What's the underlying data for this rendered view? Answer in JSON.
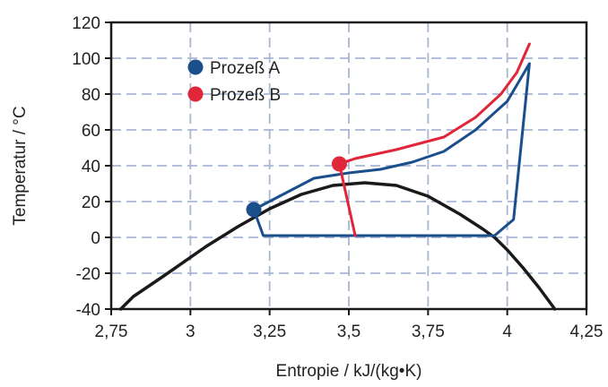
{
  "chart_data": {
    "type": "line",
    "xlabel": "Entropie / kJ/(kg•K)",
    "ylabel": "Temperatur / °C",
    "xlim": [
      2.75,
      4.25
    ],
    "ylim": [
      -40,
      120
    ],
    "x_ticks": [
      2.75,
      3.0,
      3.25,
      3.5,
      3.75,
      4.0,
      4.25
    ],
    "x_tick_labels": [
      "2,75",
      "3",
      "3,25",
      "3,5",
      "3,75",
      "4",
      "4,25"
    ],
    "y_ticks": [
      -40,
      -20,
      0,
      20,
      40,
      60,
      80,
      100,
      120
    ],
    "y_tick_labels": [
      "-40",
      "-20",
      "0",
      "20",
      "40",
      "60",
      "80",
      "100",
      "120"
    ],
    "grid": true,
    "legend_position": "top-left",
    "saturation_curve": {
      "color": "#1a1a1a",
      "x": [
        2.78,
        2.82,
        2.92,
        3.05,
        3.15,
        3.25,
        3.35,
        3.45,
        3.55,
        3.65,
        3.75,
        3.85,
        3.92,
        3.96,
        4.0,
        4.05,
        4.1,
        4.15
      ],
      "y": [
        -40,
        -33,
        -21,
        -5,
        6,
        16,
        24,
        29,
        30.5,
        29,
        23,
        13,
        5,
        0,
        -7,
        -17,
        -28,
        -40
      ]
    },
    "series": [
      {
        "name": "Prozeß A",
        "color": "#1a4f8c",
        "marker": {
          "x": 3.2,
          "y": 15.5
        },
        "x": [
          3.2,
          3.23,
          3.96,
          4.02,
          4.07,
          4.07,
          4.0,
          3.9,
          3.8,
          3.7,
          3.6,
          3.5,
          3.39,
          3.2
        ],
        "y": [
          15.5,
          1,
          1,
          10,
          97,
          97,
          76,
          60,
          48,
          42,
          38,
          36,
          33,
          15.5
        ]
      },
      {
        "name": "Prozeß B",
        "color": "#e02638",
        "marker": {
          "x": 3.47,
          "y": 41
        },
        "x": [
          3.52,
          3.47,
          3.52,
          3.65,
          3.8,
          3.9,
          3.98,
          4.03,
          4.07
        ],
        "y": [
          1,
          41,
          44,
          49,
          56,
          67,
          80,
          92,
          108
        ]
      }
    ]
  }
}
